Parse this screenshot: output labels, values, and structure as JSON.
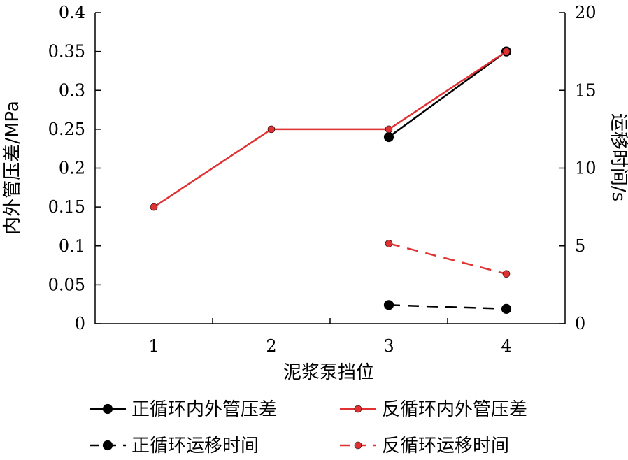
{
  "chart_data": {
    "type": "line",
    "xlabel": "泥浆泵挡位",
    "ylabel_left": "内外管压差/MPa",
    "ylabel_right": "运移时间/s",
    "x_ticks": [
      "1",
      "2",
      "3",
      "4"
    ],
    "y_left_ticks": [
      "0",
      "0.05",
      "0.1",
      "0.15",
      "0.2",
      "0.25",
      "0.3",
      "0.35",
      "0.4"
    ],
    "y_right_ticks": [
      "0",
      "5",
      "10",
      "15",
      "20"
    ],
    "y_left_range": [
      0,
      0.4
    ],
    "y_right_range": [
      0,
      20
    ],
    "x_range": [
      0.5,
      4.5
    ],
    "grid": false,
    "legend_position": "bottom",
    "series": [
      {
        "name": "正循环内外管压差",
        "axis": "left",
        "color": "#000000",
        "dash": false,
        "marker": "large",
        "points": [
          [
            3,
            0.24
          ],
          [
            4,
            0.35
          ]
        ]
      },
      {
        "name": "反循环内外管压差",
        "axis": "left",
        "color": "#e03232",
        "dash": false,
        "marker": "small",
        "points": [
          [
            1,
            0.15
          ],
          [
            2,
            0.25
          ],
          [
            3,
            0.25
          ],
          [
            4,
            0.35
          ]
        ]
      },
      {
        "name": "正循环运移时间",
        "axis": "right",
        "color": "#000000",
        "dash": true,
        "marker": "large",
        "points": [
          [
            3,
            1.2
          ],
          [
            4,
            0.95
          ]
        ]
      },
      {
        "name": "反循环运移时间",
        "axis": "right",
        "color": "#e03232",
        "dash": true,
        "marker": "small",
        "points": [
          [
            3,
            5.15
          ],
          [
            4,
            3.2
          ]
        ]
      }
    ]
  }
}
